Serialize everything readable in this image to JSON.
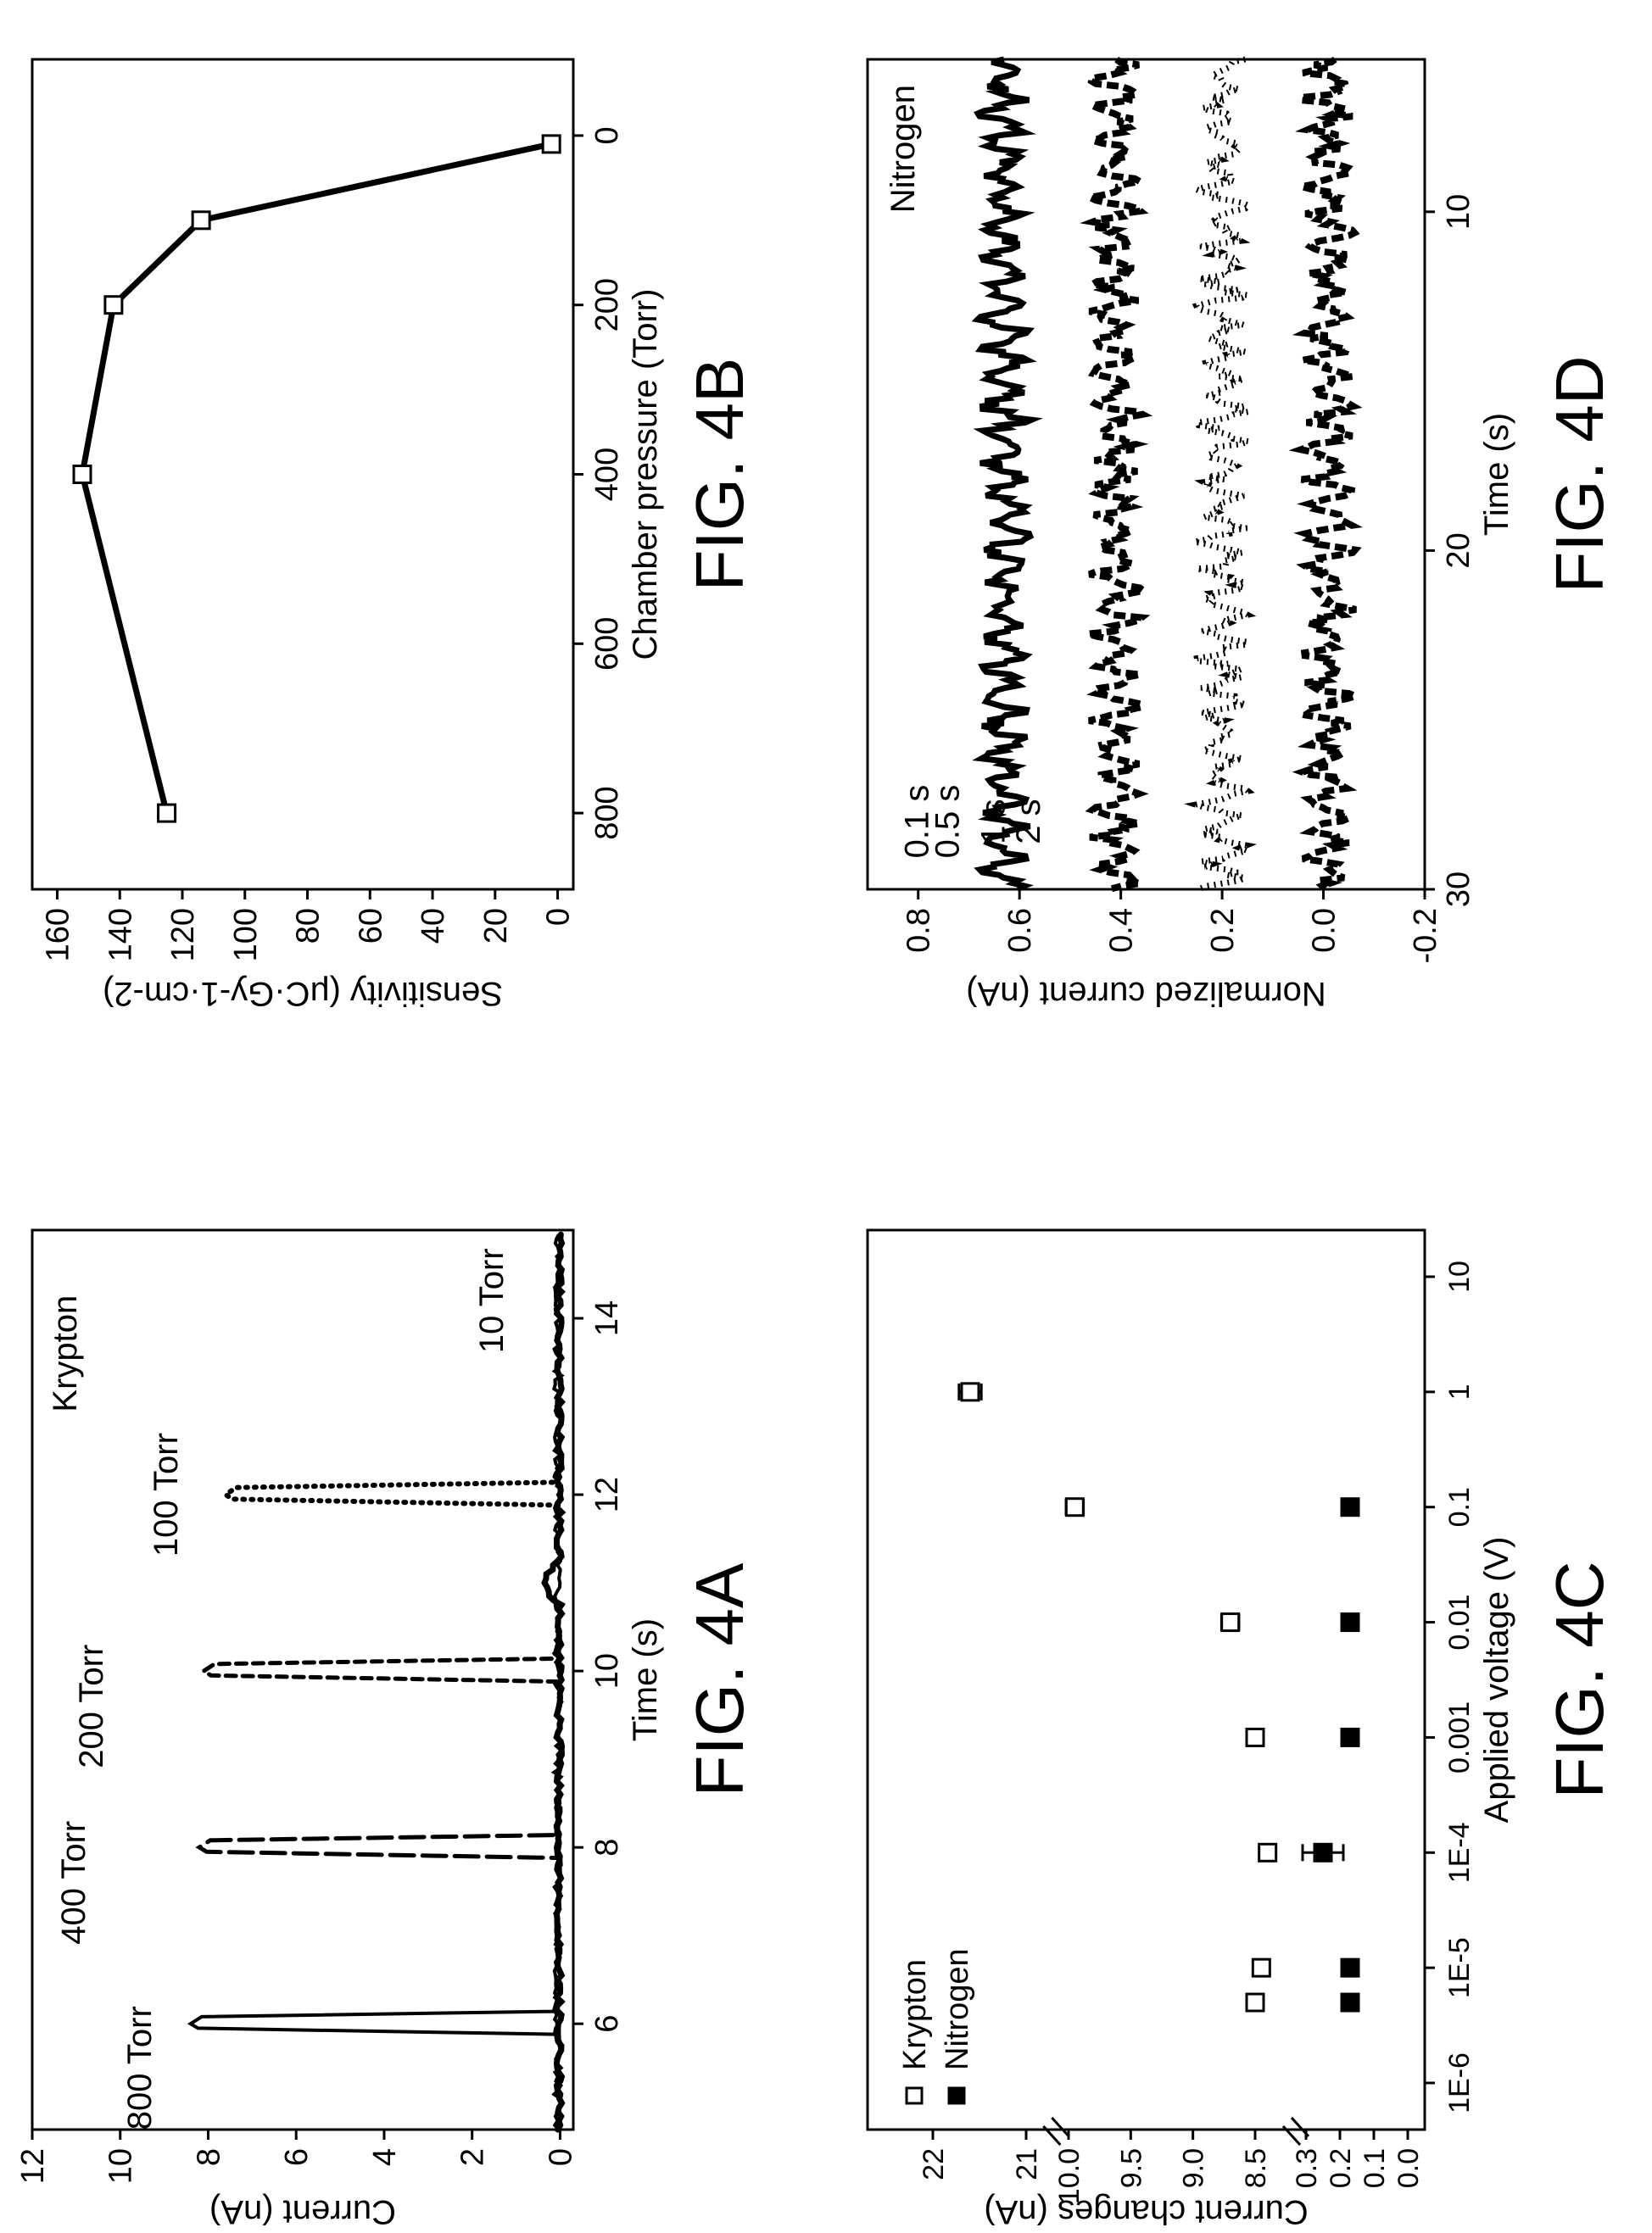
{
  "chart_data": [
    {
      "type": "line",
      "fig_label": "FIG. 4A",
      "xlabel": "Time (s)",
      "ylabel": "Current (nA)",
      "xlim": [
        4.8,
        15
      ],
      "ylim": [
        -0.3,
        12
      ],
      "xticks": [
        "6",
        "8",
        "10",
        "12",
        "14"
      ],
      "yticks": [
        "0",
        "2",
        "4",
        "6",
        "8",
        "10",
        "12"
      ],
      "gas_label": "Krypton",
      "series": [
        {
          "name": "800 Torr",
          "style": "solid",
          "pulse_time": 6.0,
          "peak": 8.4
        },
        {
          "name": "400 Torr",
          "style": "long-dash",
          "pulse_time": 8.0,
          "peak": 8.2
        },
        {
          "name": "200 Torr",
          "style": "short-dash",
          "pulse_time": 10.0,
          "peak": 8.1
        },
        {
          "name": "100 Torr",
          "style": "dotted",
          "pulse_time": 12.0,
          "peak": 7.6
        },
        {
          "name": "10 Torr",
          "style": "solid-thick",
          "pulse_time": 11.0,
          "peak": 0.1
        }
      ]
    },
    {
      "type": "line",
      "fig_label": "FIG. 4B",
      "xlabel": "Chamber pressure (Torr)",
      "ylabel": "Sensitivity (μC·Gy-1·cm-2)",
      "xlim": [
        -90,
        890
      ],
      "ylim": [
        -5,
        168
      ],
      "xticks": [
        "0",
        "200",
        "400",
        "600",
        "800"
      ],
      "yticks": [
        "0",
        "20",
        "40",
        "60",
        "80",
        "100",
        "120",
        "140",
        "160"
      ],
      "x": [
        10,
        100,
        200,
        400,
        800
      ],
      "y": [
        2,
        114,
        142,
        152,
        125
      ]
    },
    {
      "type": "scatter",
      "fig_label": "FIG. 4C",
      "xlabel": "Applied voltage (V)",
      "ylabel": "Current changes (nA)",
      "xscale": "log",
      "xticks": [
        "1E-6",
        "1E-5",
        "1E-4",
        "0.001",
        "0.01",
        "0.1",
        "1",
        "10"
      ],
      "yticks": [
        "0.0",
        "0.1",
        "0.2",
        "0.3",
        "8.5",
        "9.0",
        "9.5",
        "10.0",
        "21",
        "22"
      ],
      "legend": [
        "Krypton",
        "Nitrogen"
      ],
      "legend_position": "top-left",
      "series": [
        {
          "name": "Krypton",
          "marker": "open-square",
          "x": [
            5e-06,
            1e-05,
            0.0001,
            0.001,
            0.01,
            0.1,
            1
          ],
          "y": [
            8.5,
            8.45,
            8.4,
            8.5,
            8.7,
            9.95,
            21.6
          ],
          "err": [
            0.03,
            0.04,
            0.06,
            0.04,
            0.07,
            0.07,
            0.12
          ]
        },
        {
          "name": "Nitrogen",
          "marker": "filled-square",
          "x": [
            5e-06,
            1e-05,
            0.0001,
            0.001,
            0.01,
            0.1
          ],
          "y": [
            0.17,
            0.17,
            0.25,
            0.17,
            0.17,
            0.17
          ],
          "err": [
            0.015,
            0.02,
            0.06,
            0.0,
            0.015,
            0.01
          ]
        }
      ]
    },
    {
      "type": "line",
      "fig_label": "FIG. 4D",
      "xlabel": "Time (s)",
      "ylabel": "Normalized current (nA)",
      "xlim": [
        5.5,
        30
      ],
      "ylim": [
        -0.2,
        0.9
      ],
      "xticks": [
        "10",
        "20",
        "30"
      ],
      "yticks": [
        "-0.2",
        "0.0",
        "0.2",
        "0.4",
        "0.6",
        "0.8"
      ],
      "gas_label": "Nitrogen",
      "series": [
        {
          "name": "0.1 s",
          "style": "solid-thick",
          "baseline": 0.63,
          "noise": 0.05
        },
        {
          "name": "0.5 s",
          "style": "dashed-thick",
          "baseline": 0.41,
          "noise": 0.05
        },
        {
          "name": "1 s",
          "style": "dotted",
          "baseline": 0.2,
          "noise": 0.05
        },
        {
          "name": "2 s",
          "style": "dashed-thick",
          "baseline": -0.01,
          "noise": 0.05
        }
      ]
    }
  ]
}
